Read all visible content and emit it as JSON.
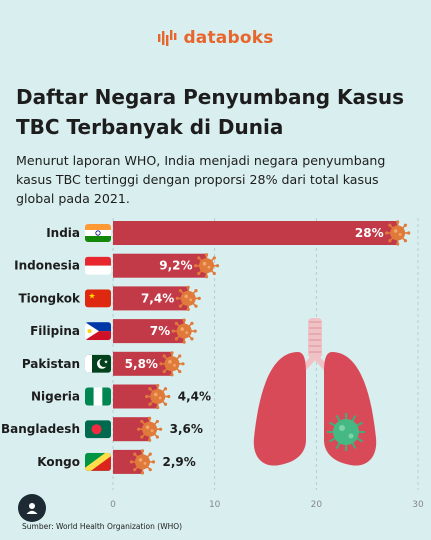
{
  "brand": {
    "name": "databoks",
    "accent": "#e8652b"
  },
  "title": "Daftar Negara Penyumbang Kasus TBC Terbanyak di Dunia",
  "description": "Menurut laporan WHO, India menjadi negara penyumbang kasus TBC tertinggi dengan proporsi 28% dari total kasus global pada 2021.",
  "source": "Sumber: World Health Organization (WHO)",
  "icons": [
    "databoks-logo-icon",
    "virus-icon",
    "lungs-illustration",
    "flag-icons",
    "user-avatar-icon"
  ],
  "colors": {
    "background": "#d9eeee",
    "bar": "#c23a48",
    "virus": "#e07a3a",
    "lungs": "#d84a58"
  },
  "chart_data": {
    "type": "bar",
    "orientation": "horizontal",
    "categories": [
      "India",
      "Indonesia",
      "Tiongkok",
      "Filipina",
      "Pakistan",
      "Nigeria",
      "Bangladesh",
      "Kongo"
    ],
    "values": [
      28,
      9.2,
      7.4,
      7,
      5.8,
      4.4,
      3.6,
      2.9
    ],
    "value_labels": [
      "28%",
      "9,2%",
      "7,4%",
      "7%",
      "5,8%",
      "4,4%",
      "3,6%",
      "2,9%"
    ],
    "xticks": [
      "0",
      "10",
      "20",
      "30"
    ],
    "xlim": [
      0,
      30
    ],
    "grid": "vertical dashed"
  }
}
